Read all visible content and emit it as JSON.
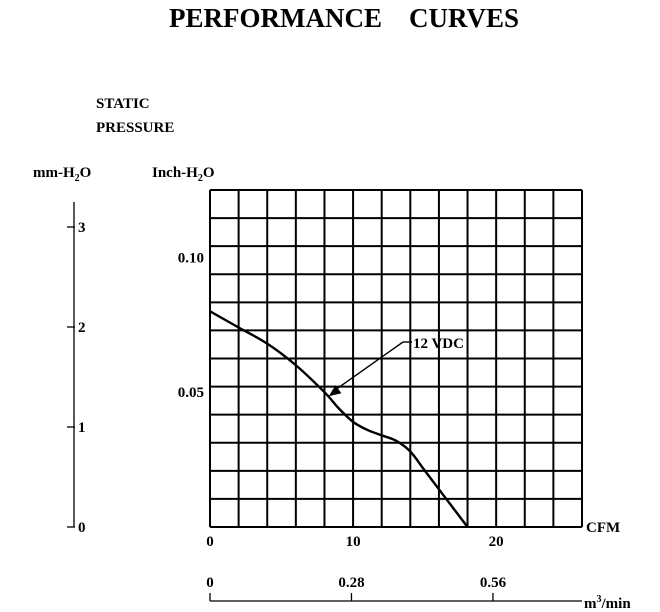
{
  "chart_data": {
    "type": "line",
    "title": "PERFORMANCE    CURVES",
    "ylabel_line1": "STATIC",
    "ylabel_line2": "PRESSURE",
    "left_axis_unit": {
      "main": "mm-H",
      "sub": "2",
      "tail": "O"
    },
    "right_axis_unit": {
      "main": "Inch-H",
      "sub": "2",
      "tail": "O"
    },
    "xlabel": "CFM",
    "xlabel_secondary": {
      "main": "m",
      "sup": "3",
      "tail": "/min"
    },
    "xlim": [
      0,
      26
    ],
    "ylim": [
      0,
      0.125
    ],
    "x_ticks": [
      "0",
      "10",
      "20"
    ],
    "x_tick_values": [
      0,
      10,
      20
    ],
    "y_ticks": [
      "0.05",
      "0.10"
    ],
    "y_tick_values": [
      0.05,
      0.1
    ],
    "left_axis_ticks": [
      "0",
      "1",
      "2",
      "3"
    ],
    "secondary_x_ticks": [
      "0",
      "0.28",
      "0.56"
    ],
    "grid": true,
    "series": [
      {
        "name": "12 VDC",
        "x": [
          0,
          2,
          4,
          6,
          8,
          9,
          10,
          11,
          12,
          13,
          14,
          15,
          16,
          17,
          18
        ],
        "y": [
          0.08,
          0.074,
          0.068,
          0.06,
          0.05,
          0.044,
          0.039,
          0.036,
          0.034,
          0.032,
          0.028,
          0.021,
          0.014,
          0.007,
          0.0
        ]
      }
    ],
    "annotation": "12 VDC"
  }
}
